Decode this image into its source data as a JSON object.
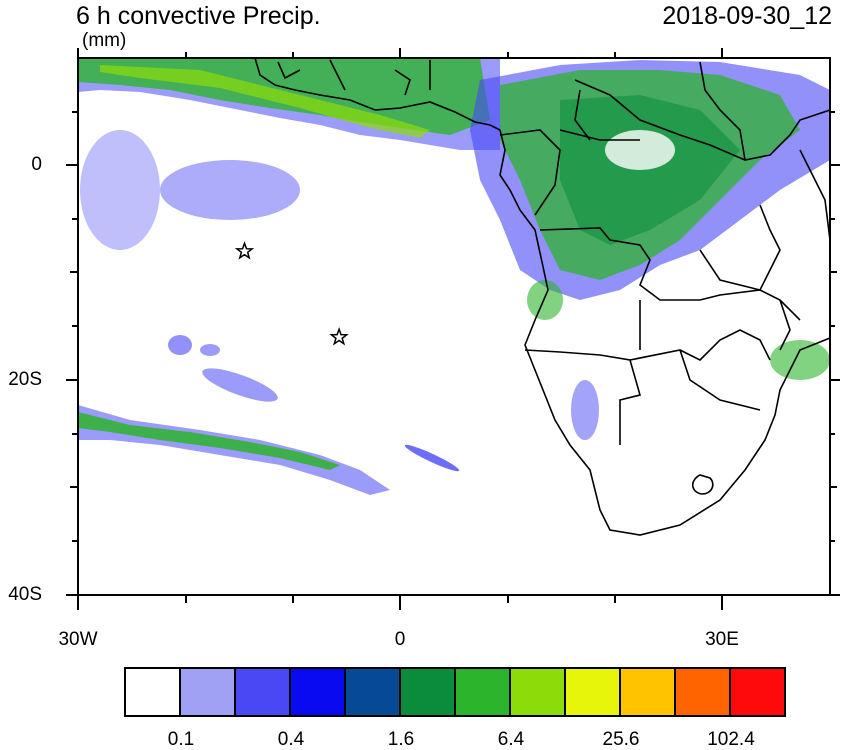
{
  "header": {
    "title": "6 h convective Precip.",
    "units": "(mm)",
    "datetime": "2018-09-30_12"
  },
  "axes": {
    "y_ticks": [
      "0",
      "20S",
      "40S"
    ],
    "x_ticks": [
      "30W",
      "0",
      "30E"
    ],
    "lon_range": [
      -30,
      40
    ],
    "lat_range": [
      -40,
      10
    ]
  },
  "colorbar": {
    "colors": [
      "#ffffff",
      "#a0a0f5",
      "#4848f5",
      "#0a0af0",
      "#064a96",
      "#0a8c3c",
      "#2db42d",
      "#8cdc0a",
      "#e6f50a",
      "#ffc300",
      "#ff6400",
      "#ff0a0a"
    ],
    "labels": [
      "0.1",
      "0.4",
      "1.6",
      "6.4",
      "25.6",
      "102.4"
    ]
  },
  "markers": [
    {
      "name": "star-marker",
      "lon": -14.5,
      "lat": -8
    },
    {
      "name": "star-marker",
      "lon": -5.7,
      "lat": -16
    }
  ]
}
